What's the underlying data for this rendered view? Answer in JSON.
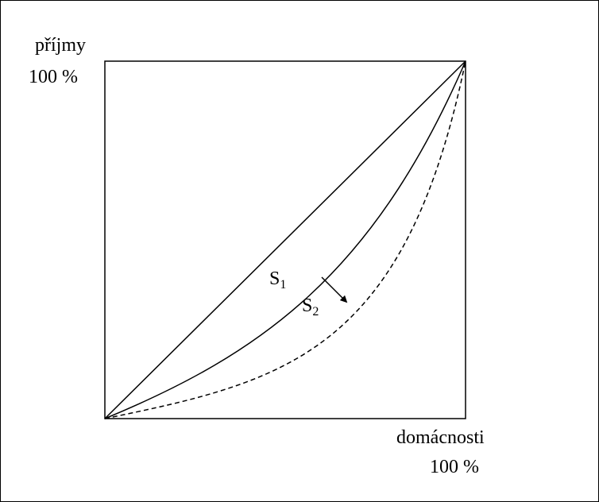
{
  "diagram": {
    "y_axis_label": "příjmy",
    "y_axis_value": "100 %",
    "x_axis_label": "domácnosti",
    "x_axis_value": "100 %",
    "curve1": {
      "letter": "S",
      "index": "1"
    },
    "curve2": {
      "letter": "S",
      "index": "2"
    }
  }
}
